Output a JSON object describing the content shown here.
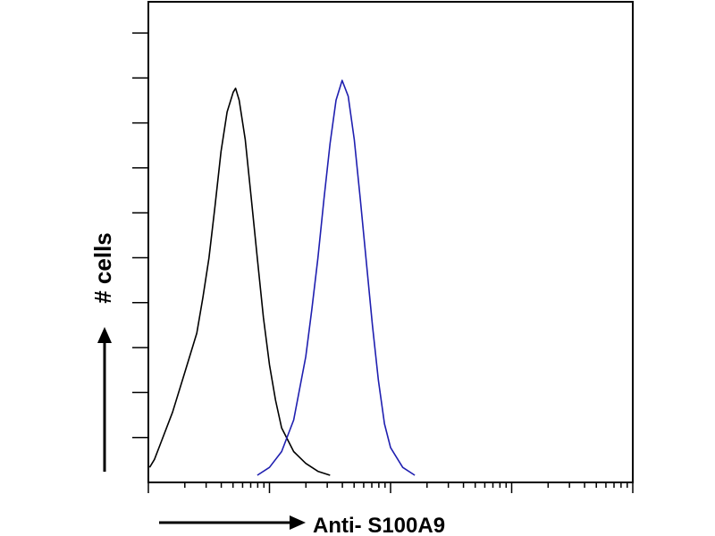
{
  "chart_data": {
    "type": "line",
    "title": "",
    "xlabel": "Anti- S100A9",
    "ylabel": "# cells",
    "x_scale": "log",
    "grid": false,
    "legend": "none",
    "series": [
      {
        "color": "#000000",
        "points": [
          [
            0.01,
            0.02
          ],
          [
            0.05,
            0.04
          ],
          [
            0.1,
            0.08
          ],
          [
            0.2,
            0.16
          ],
          [
            0.3,
            0.26
          ],
          [
            0.4,
            0.36
          ],
          [
            0.45,
            0.45
          ],
          [
            0.5,
            0.55
          ],
          [
            0.55,
            0.68
          ],
          [
            0.6,
            0.82
          ],
          [
            0.65,
            0.92
          ],
          [
            0.7,
            0.97
          ],
          [
            0.72,
            0.98
          ],
          [
            0.75,
            0.95
          ],
          [
            0.8,
            0.85
          ],
          [
            0.85,
            0.7
          ],
          [
            0.9,
            0.55
          ],
          [
            0.95,
            0.4
          ],
          [
            1.0,
            0.28
          ],
          [
            1.05,
            0.19
          ],
          [
            1.1,
            0.12
          ],
          [
            1.2,
            0.06
          ],
          [
            1.3,
            0.03
          ],
          [
            1.4,
            0.01
          ],
          [
            1.5,
            0.0
          ]
        ]
      },
      {
        "color": "#1f1fb0",
        "points": [
          [
            0.9,
            0.0
          ],
          [
            1.0,
            0.02
          ],
          [
            1.1,
            0.06
          ],
          [
            1.2,
            0.14
          ],
          [
            1.3,
            0.3
          ],
          [
            1.35,
            0.42
          ],
          [
            1.4,
            0.55
          ],
          [
            1.45,
            0.7
          ],
          [
            1.5,
            0.84
          ],
          [
            1.55,
            0.95
          ],
          [
            1.6,
            1.0
          ],
          [
            1.65,
            0.96
          ],
          [
            1.7,
            0.85
          ],
          [
            1.75,
            0.7
          ],
          [
            1.8,
            0.54
          ],
          [
            1.85,
            0.38
          ],
          [
            1.9,
            0.24
          ],
          [
            1.95,
            0.13
          ],
          [
            2.0,
            0.07
          ],
          [
            2.1,
            0.02
          ],
          [
            2.2,
            0.0
          ]
        ]
      }
    ]
  }
}
